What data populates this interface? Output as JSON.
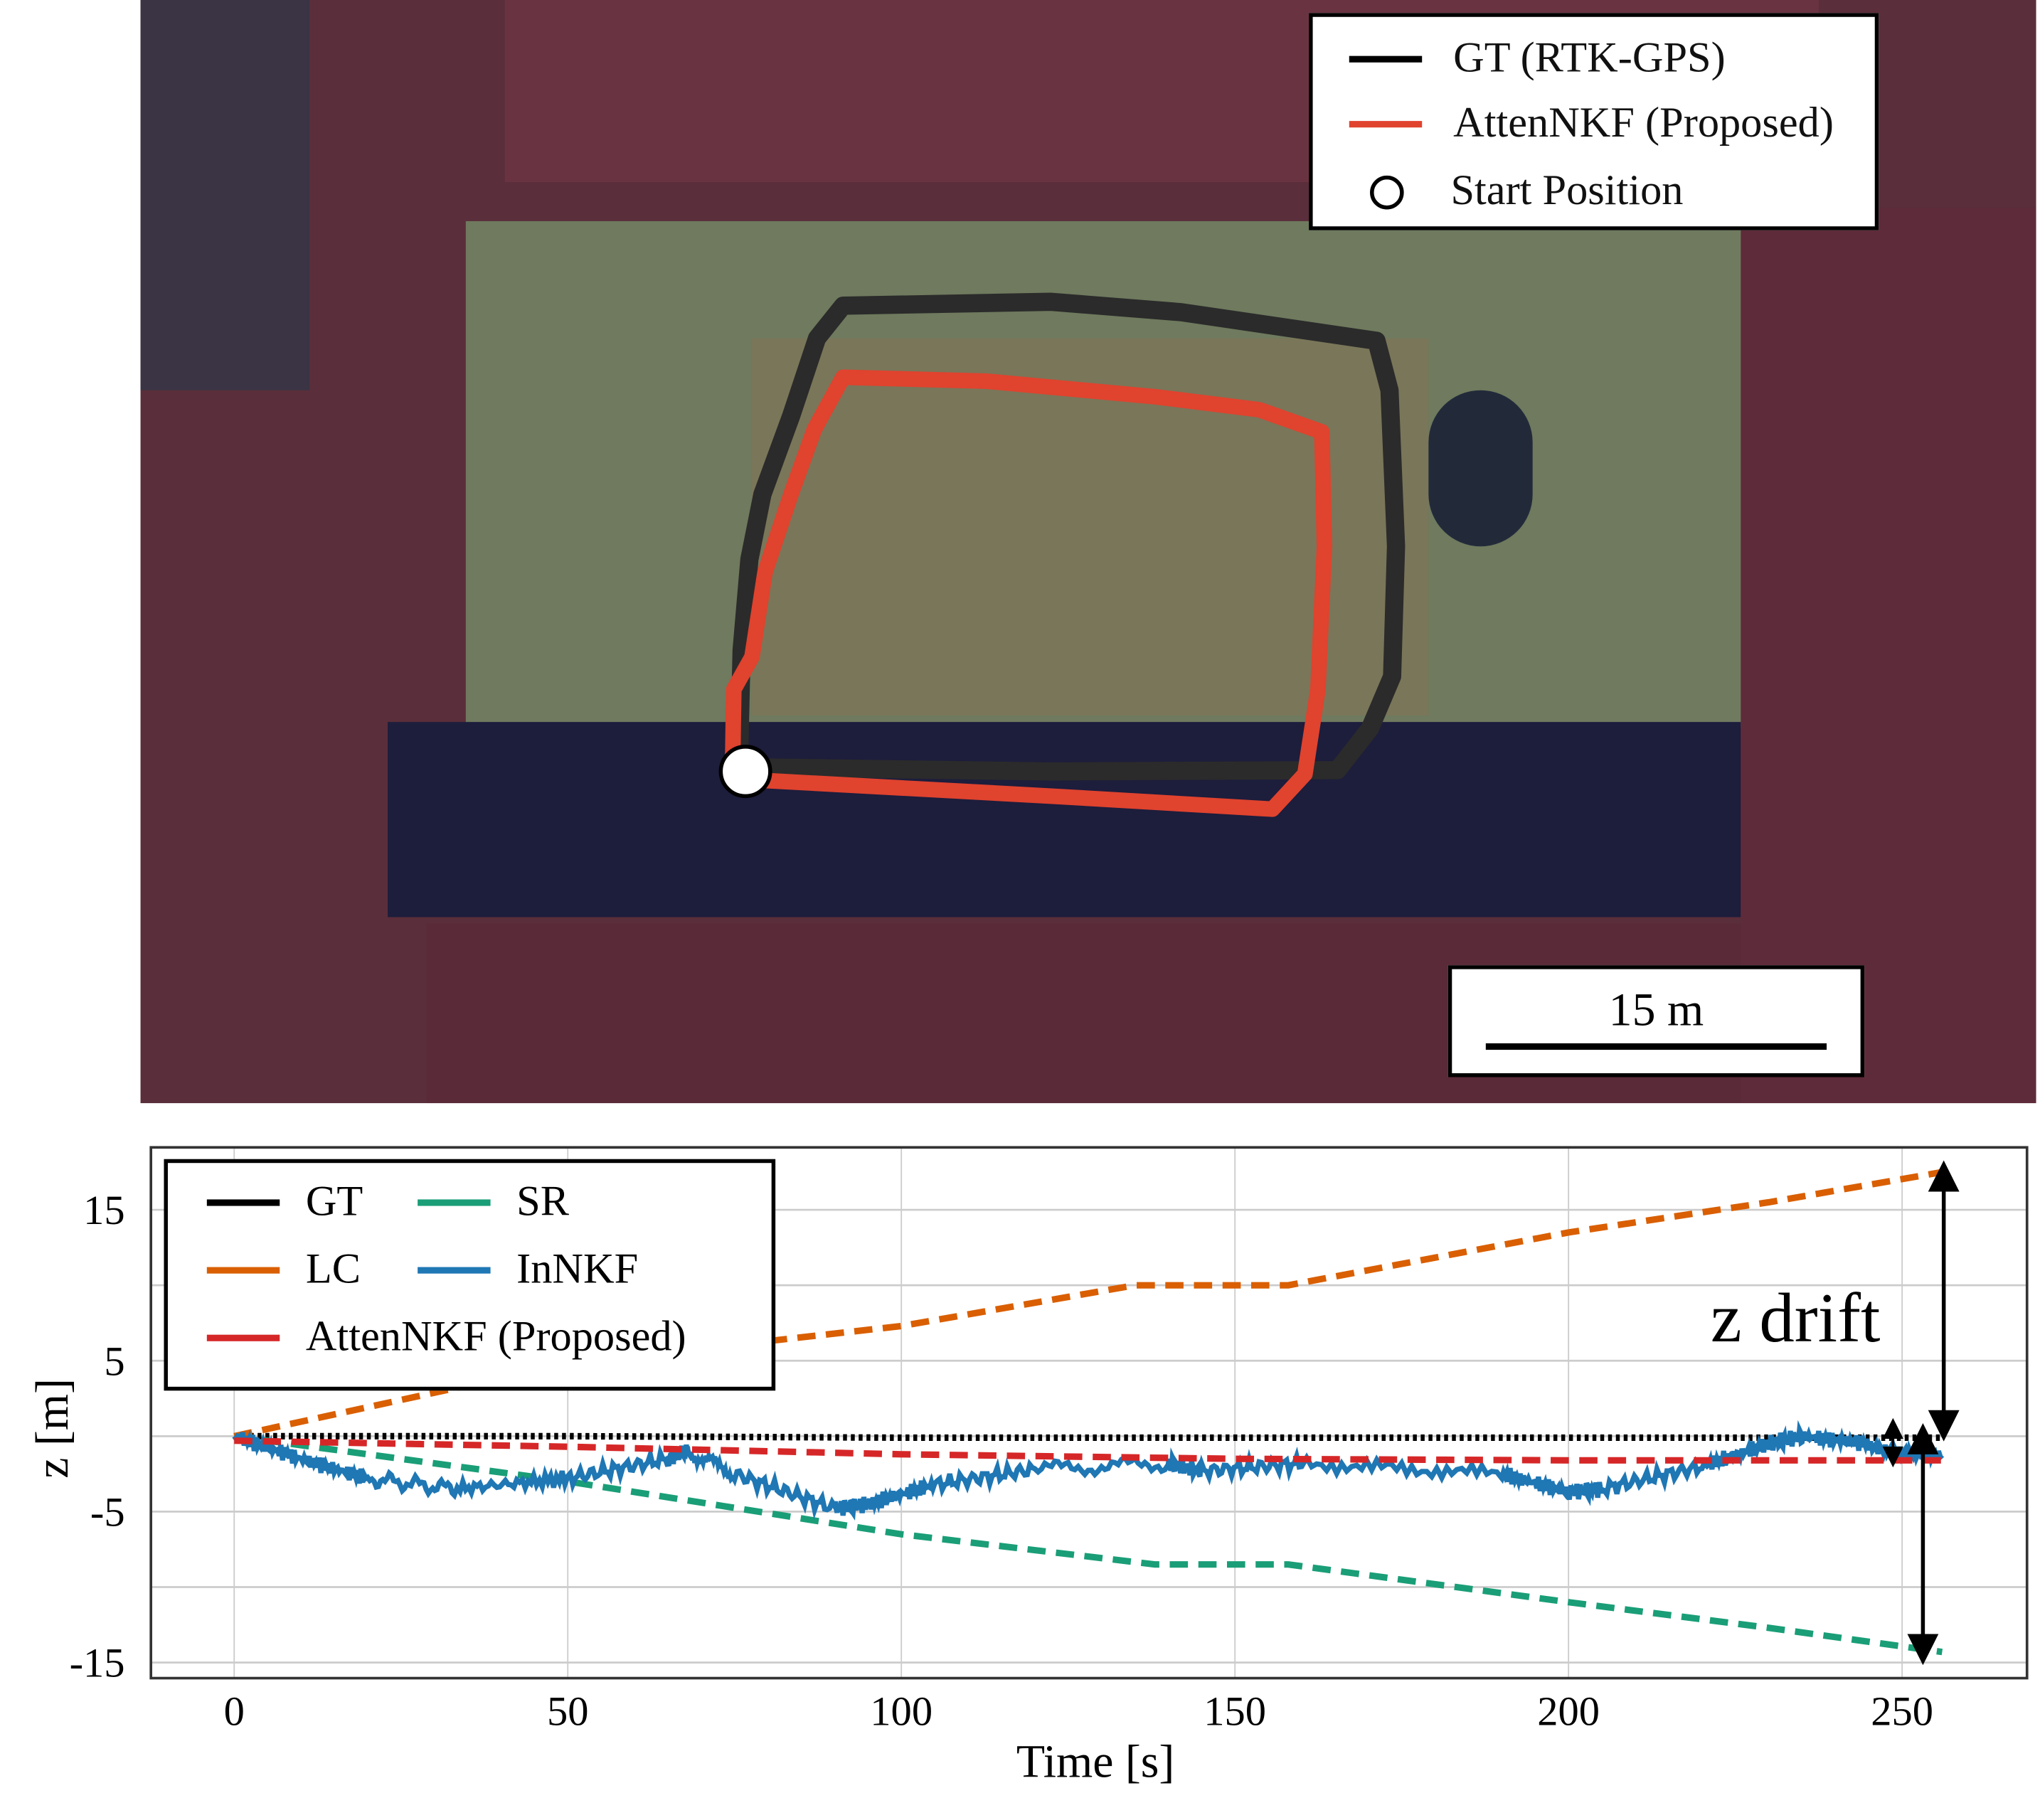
{
  "map": {
    "legend": [
      {
        "label": "GT (RTK-GPS)",
        "color": "#000000",
        "marker": "line"
      },
      {
        "label": "AttenNKF (Proposed)",
        "color": "#e0432e",
        "marker": "line"
      },
      {
        "label": "Start Position",
        "color": "#000000",
        "marker": "circle"
      }
    ],
    "scale_bar": "15 m"
  },
  "chart_data": {
    "type": "line",
    "xlabel": "Time [s]",
    "ylabel": "z [m]",
    "xlim": [
      -12.5,
      269
    ],
    "ylim": [
      -16,
      19
    ],
    "x_ticks": [
      0,
      50,
      100,
      150,
      200,
      250
    ],
    "y_ticks": [
      15,
      5,
      -5,
      -15
    ],
    "y_gridlines": [
      15,
      10,
      5,
      0,
      -5,
      -10,
      -15
    ],
    "grid": true,
    "legend_position": "top-left",
    "annotation": "z drift",
    "series": [
      {
        "name": "GT",
        "color": "#000000",
        "style": "dotted",
        "x": [
          0,
          50,
          100,
          150,
          200,
          256
        ],
        "y": [
          0,
          0,
          -0.1,
          -0.1,
          -0.1,
          -0.1
        ]
      },
      {
        "name": "SR",
        "color": "#1a9e77",
        "style": "dashed",
        "x": [
          0,
          50,
          100,
          138,
          158,
          200,
          230,
          256
        ],
        "y": [
          0,
          -3,
          -6.5,
          -8.5,
          -8.5,
          -11,
          -12.7,
          -14.3
        ]
      },
      {
        "name": "LC",
        "color": "#d95f02",
        "style": "dashed",
        "x": [
          0,
          50,
          100,
          135,
          158,
          200,
          230,
          256
        ],
        "y": [
          0,
          4.8,
          7.3,
          10,
          10,
          13.5,
          15.5,
          17.5
        ]
      },
      {
        "name": "InNKF",
        "color": "#1f77b4",
        "style": "solid",
        "x": [
          0,
          10,
          20,
          33,
          50,
          65,
          68,
          75,
          90,
          95,
          105,
          120,
          140,
          145,
          160,
          190,
          200,
          205,
          220,
          230,
          235,
          245,
          256
        ],
        "y": [
          0,
          -1.5,
          -2.8,
          -3.5,
          -2.8,
          -1.5,
          -1,
          -2.5,
          -4.8,
          -4.5,
          -3.2,
          -2.2,
          -1.8,
          -2.3,
          -1.8,
          -2.5,
          -3.7,
          -3.5,
          -2,
          -0.5,
          0,
          -0.5,
          -1.5
        ]
      },
      {
        "name": "AttenNKF (Proposed)",
        "color": "#d62728",
        "style": "dashed",
        "x": [
          0,
          50,
          100,
          150,
          200,
          256
        ],
        "y": [
          -0.3,
          -0.7,
          -1.2,
          -1.5,
          -1.6,
          -1.6
        ]
      }
    ]
  }
}
